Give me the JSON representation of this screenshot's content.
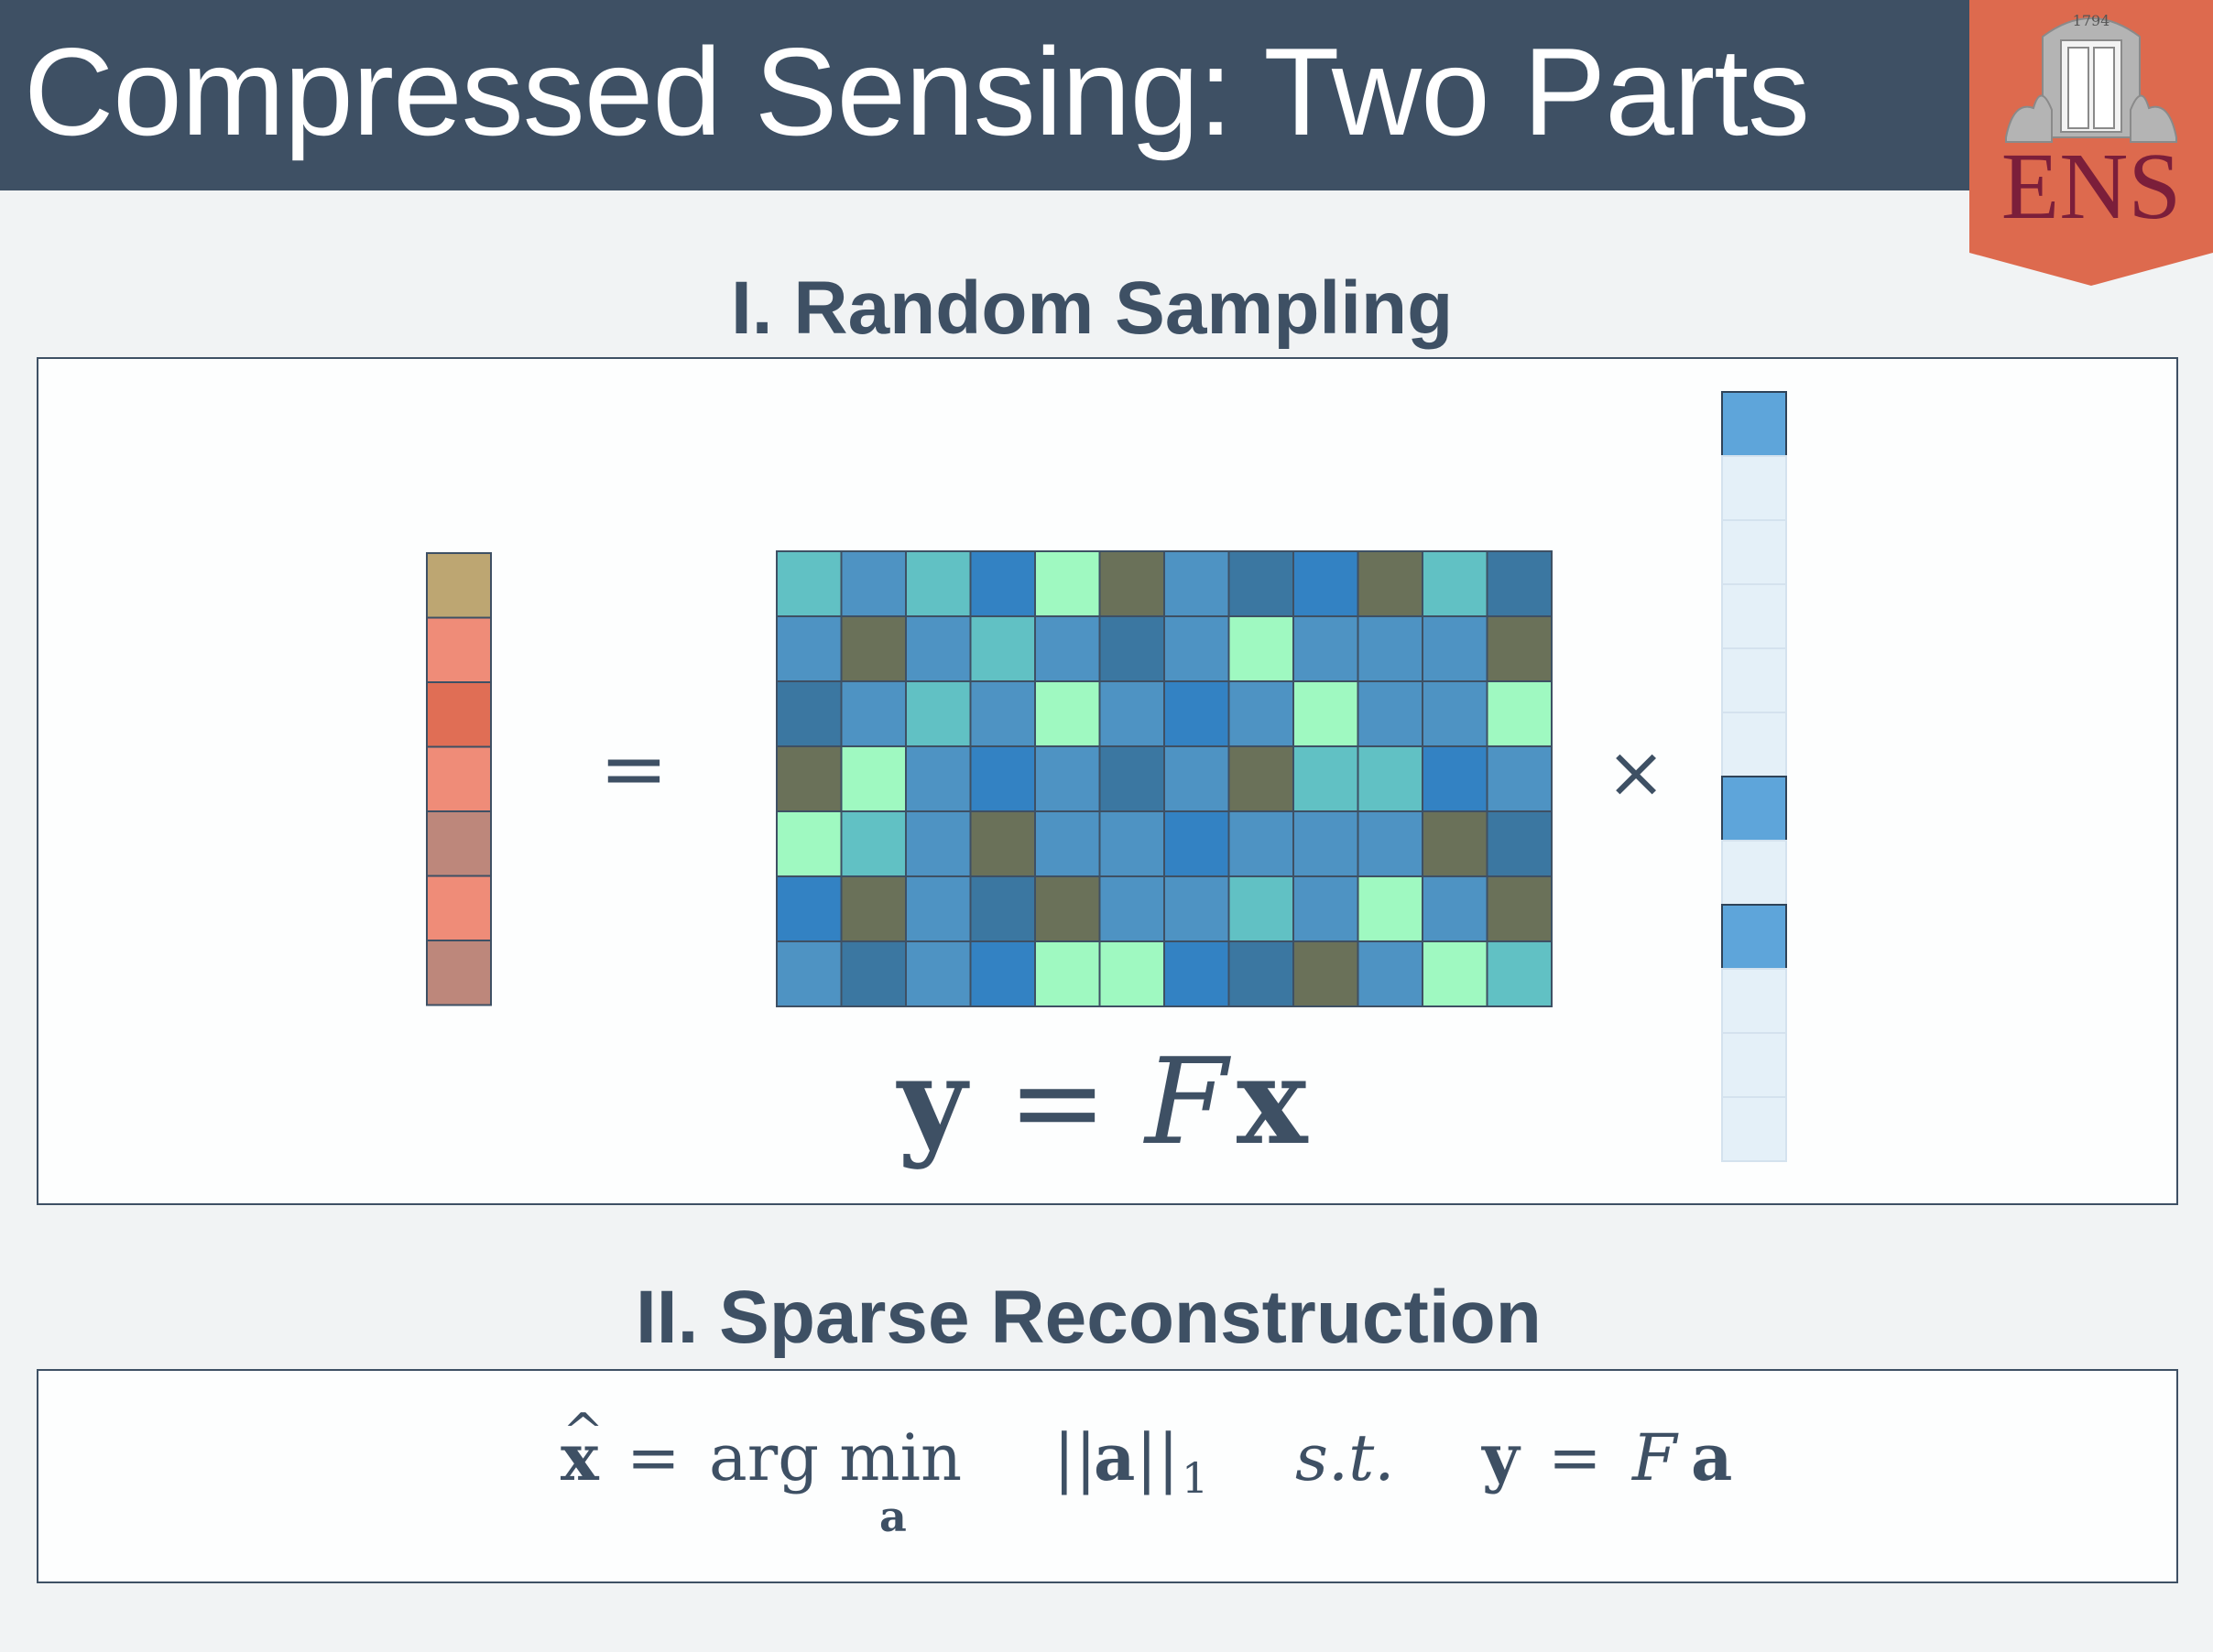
{
  "slide": {
    "title": "Compressed Sensing: Two Parts"
  },
  "logo": {
    "text": "ENS",
    "year": "1794",
    "bg_color": "#dd6a4e",
    "text_color": "#7b1e3a"
  },
  "section1": {
    "heading": "I. Random Sampling",
    "equals_symbol": "=",
    "times_symbol": "×",
    "equation": {
      "y": "y",
      "eq": "=",
      "F": "F",
      "x": "x"
    }
  },
  "section2": {
    "heading": "II. Sparse Reconstruction",
    "formula": {
      "xhat": "x",
      "hat": "^",
      "eq1": "=",
      "argmin": "arg min",
      "sub": "a",
      "norm_open": "||",
      "a": "a",
      "norm_close": "||",
      "norm_sub": "1",
      "st": "s.t.",
      "y": "y",
      "eq2": "=",
      "F": "F",
      "a2": "a"
    }
  },
  "vector_y": {
    "colors": [
      "#bda672",
      "#ef8c78",
      "#e06e55",
      "#ef8c78",
      "#bd877b",
      "#ef8c78",
      "#bd877b"
    ]
  },
  "matrix_F": {
    "rows": 7,
    "cols": 12,
    "palette": {
      "A": "#61c1c4",
      "B": "#4e93c3",
      "C": "#3b77a1",
      "D": "#3382c3",
      "E": "#9ff9c1",
      "G": "#6a7159"
    },
    "cells": [
      [
        "A",
        "B",
        "A",
        "D",
        "E",
        "G",
        "B",
        "C",
        "D",
        "G",
        "A",
        "C"
      ],
      [
        "B",
        "G",
        "B",
        "A",
        "B",
        "C",
        "B",
        "E",
        "B",
        "B",
        "B",
        "G"
      ],
      [
        "C",
        "B",
        "A",
        "B",
        "E",
        "B",
        "D",
        "B",
        "E",
        "B",
        "B",
        "E"
      ],
      [
        "G",
        "E",
        "B",
        "D",
        "B",
        "C",
        "B",
        "G",
        "A",
        "A",
        "D",
        "B"
      ],
      [
        "E",
        "A",
        "B",
        "G",
        "B",
        "B",
        "D",
        "B",
        "B",
        "B",
        "G",
        "C"
      ],
      [
        "D",
        "G",
        "B",
        "C",
        "G",
        "B",
        "B",
        "A",
        "B",
        "E",
        "B",
        "G"
      ],
      [
        "B",
        "C",
        "B",
        "D",
        "E",
        "E",
        "D",
        "C",
        "G",
        "B",
        "E",
        "A"
      ]
    ]
  },
  "vector_x": {
    "length": 12,
    "nonzero_indices": [
      0,
      6,
      8
    ],
    "nonzero_color": "#5ea5da",
    "zero_color": "#e4f0f8"
  }
}
